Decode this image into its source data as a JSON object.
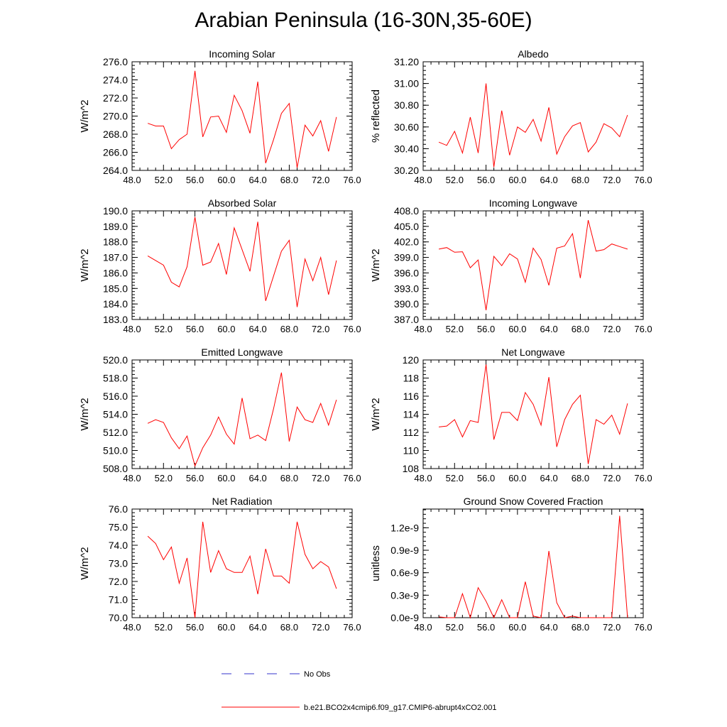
{
  "title": "Arabian Peninsula (16-30N,35-60E)",
  "colors": {
    "series": "#ff0000",
    "obs": "#3333cc",
    "axes": "#000000"
  },
  "legend": {
    "obs_label": "No Obs",
    "model_label": "b.e21.BCO2x4cmip6.f09_g17.CMIP6-abrupt4xCO2.001"
  },
  "chart_data": [
    {
      "type": "line",
      "title": "Incoming Solar",
      "ylabel": "W/m^2",
      "xlim": [
        48,
        76
      ],
      "ylim": [
        264,
        276
      ],
      "xticks": [
        "48.0",
        "52.0",
        "56.0",
        "60.0",
        "64.0",
        "68.0",
        "72.0",
        "76.0"
      ],
      "yticks": [
        "264.0",
        "266.0",
        "268.0",
        "270.0",
        "272.0",
        "274.0",
        "276.0"
      ],
      "x": [
        50,
        51,
        52,
        53,
        54,
        55,
        56,
        57,
        58,
        59,
        60,
        61,
        62,
        63,
        64,
        65,
        66,
        67,
        68,
        69,
        70,
        71,
        72,
        73,
        74
      ],
      "series": [
        {
          "name": "b.e21.BCO2x4cmip6.f09_g17.CMIP6-abrupt4xCO2.001",
          "values": [
            269.2,
            268.9,
            268.9,
            266.4,
            267.4,
            268.0,
            275.0,
            267.7,
            269.9,
            270.0,
            268.2,
            272.3,
            270.6,
            268.1,
            273.8,
            264.8,
            267.4,
            270.3,
            271.4,
            264.3,
            269.0,
            267.8,
            269.5,
            266.1,
            269.9
          ]
        }
      ]
    },
    {
      "type": "line",
      "title": "Albedo",
      "ylabel": "% reflected",
      "xlim": [
        48,
        76
      ],
      "ylim": [
        30.2,
        31.2
      ],
      "xticks": [
        "48.0",
        "52.0",
        "56.0",
        "60.0",
        "64.0",
        "68.0",
        "72.0",
        "76.0"
      ],
      "yticks": [
        "30.20",
        "30.40",
        "30.60",
        "30.80",
        "31.00",
        "31.20"
      ],
      "x": [
        50,
        51,
        52,
        53,
        54,
        55,
        56,
        57,
        58,
        59,
        60,
        61,
        62,
        63,
        64,
        65,
        66,
        67,
        68,
        69,
        70,
        71,
        72,
        73,
        74
      ],
      "series": [
        {
          "name": "b.e21.BCO2x4cmip6.f09_g17.CMIP6-abrupt4xCO2.001",
          "values": [
            30.46,
            30.43,
            30.56,
            30.36,
            30.69,
            30.36,
            31.0,
            30.23,
            30.75,
            30.34,
            30.6,
            30.55,
            30.67,
            30.47,
            30.78,
            30.35,
            30.51,
            30.61,
            30.64,
            30.37,
            30.46,
            30.63,
            30.59,
            30.51,
            30.71
          ]
        }
      ]
    },
    {
      "type": "line",
      "title": "Absorbed Solar",
      "ylabel": "W/m^2",
      "xlim": [
        48,
        76
      ],
      "ylim": [
        183,
        190
      ],
      "xticks": [
        "48.0",
        "52.0",
        "56.0",
        "60.0",
        "64.0",
        "68.0",
        "72.0",
        "76.0"
      ],
      "yticks": [
        "183.0",
        "184.0",
        "185.0",
        "186.0",
        "187.0",
        "188.0",
        "189.0",
        "190.0"
      ],
      "x": [
        50,
        51,
        52,
        53,
        54,
        55,
        56,
        57,
        58,
        59,
        60,
        61,
        62,
        63,
        64,
        65,
        66,
        67,
        68,
        69,
        70,
        71,
        72,
        73,
        74
      ],
      "series": [
        {
          "name": "b.e21.BCO2x4cmip6.f09_g17.CMIP6-abrupt4xCO2.001",
          "values": [
            187.1,
            186.8,
            186.5,
            185.4,
            185.1,
            186.4,
            189.6,
            186.5,
            186.7,
            187.9,
            185.9,
            188.9,
            187.5,
            186.1,
            189.3,
            184.2,
            185.8,
            187.4,
            188.1,
            183.8,
            186.9,
            185.5,
            187.0,
            184.6,
            186.8
          ]
        }
      ]
    },
    {
      "type": "line",
      "title": "Incoming Longwave",
      "ylabel": "W/m^2",
      "xlim": [
        48,
        76
      ],
      "ylim": [
        387,
        408
      ],
      "xticks": [
        "48.0",
        "52.0",
        "56.0",
        "60.0",
        "64.0",
        "68.0",
        "72.0",
        "76.0"
      ],
      "yticks": [
        "387.0",
        "390.0",
        "393.0",
        "396.0",
        "399.0",
        "402.0",
        "405.0",
        "408.0"
      ],
      "x": [
        50,
        51,
        52,
        53,
        54,
        55,
        56,
        57,
        58,
        59,
        60,
        61,
        62,
        63,
        64,
        65,
        66,
        67,
        68,
        69,
        70,
        71,
        72,
        73,
        74
      ],
      "series": [
        {
          "name": "b.e21.BCO2x4cmip6.f09_g17.CMIP6-abrupt4xCO2.001",
          "values": [
            400.6,
            400.9,
            400.0,
            400.1,
            397.0,
            398.5,
            388.8,
            399.2,
            397.4,
            399.7,
            398.7,
            394.2,
            400.8,
            398.6,
            393.6,
            400.8,
            401.2,
            403.6,
            395.0,
            406.2,
            400.2,
            400.5,
            401.6,
            401.1,
            400.6
          ]
        }
      ]
    },
    {
      "type": "line",
      "title": "Emitted Longwave",
      "ylabel": "W/m^2",
      "xlim": [
        48,
        76
      ],
      "ylim": [
        508,
        520
      ],
      "xticks": [
        "48.0",
        "52.0",
        "56.0",
        "60.0",
        "64.0",
        "68.0",
        "72.0",
        "76.0"
      ],
      "yticks": [
        "508.0",
        "510.0",
        "512.0",
        "514.0",
        "516.0",
        "518.0",
        "520.0"
      ],
      "x": [
        50,
        51,
        52,
        53,
        54,
        55,
        56,
        57,
        58,
        59,
        60,
        61,
        62,
        63,
        64,
        65,
        66,
        67,
        68,
        69,
        70,
        71,
        72,
        73,
        74
      ],
      "series": [
        {
          "name": "b.e21.BCO2x4cmip6.f09_g17.CMIP6-abrupt4xCO2.001",
          "values": [
            513.0,
            513.4,
            513.1,
            511.4,
            510.2,
            511.6,
            508.3,
            510.3,
            511.7,
            513.7,
            511.8,
            510.7,
            515.8,
            511.3,
            511.7,
            511.1,
            514.6,
            518.6,
            511.0,
            514.8,
            513.4,
            513.1,
            515.2,
            512.8,
            515.6
          ]
        }
      ]
    },
    {
      "type": "line",
      "title": "Net Longwave",
      "ylabel": "W/m^2",
      "xlim": [
        48,
        76
      ],
      "ylim": [
        108,
        120
      ],
      "xticks": [
        "48.0",
        "52.0",
        "56.0",
        "60.0",
        "64.0",
        "68.0",
        "72.0",
        "76.0"
      ],
      "yticks": [
        "108",
        "110",
        "112",
        "114",
        "116",
        "118",
        "120"
      ],
      "x": [
        50,
        51,
        52,
        53,
        54,
        55,
        56,
        57,
        58,
        59,
        60,
        61,
        62,
        63,
        64,
        65,
        66,
        67,
        68,
        69,
        70,
        71,
        72,
        73,
        74
      ],
      "series": [
        {
          "name": "b.e21.BCO2x4cmip6.f09_g17.CMIP6-abrupt4xCO2.001",
          "values": [
            112.6,
            112.7,
            113.4,
            111.5,
            113.3,
            113.1,
            119.5,
            111.2,
            114.2,
            114.2,
            113.3,
            116.4,
            115.1,
            112.8,
            118.1,
            110.4,
            113.4,
            115.1,
            116.1,
            108.5,
            113.4,
            112.9,
            113.9,
            111.8,
            115.2
          ]
        }
      ]
    },
    {
      "type": "line",
      "title": "Net Radiation",
      "ylabel": "W/m^2",
      "xlim": [
        48,
        76
      ],
      "ylim": [
        70,
        76
      ],
      "xticks": [
        "48.0",
        "52.0",
        "56.0",
        "60.0",
        "64.0",
        "68.0",
        "72.0",
        "76.0"
      ],
      "yticks": [
        "70.0",
        "71.0",
        "72.0",
        "73.0",
        "74.0",
        "75.0",
        "76.0"
      ],
      "x": [
        50,
        51,
        52,
        53,
        54,
        55,
        56,
        57,
        58,
        59,
        60,
        61,
        62,
        63,
        64,
        65,
        66,
        67,
        68,
        69,
        70,
        71,
        72,
        73,
        74
      ],
      "series": [
        {
          "name": "b.e21.BCO2x4cmip6.f09_g17.CMIP6-abrupt4xCO2.001",
          "values": [
            74.5,
            74.1,
            73.2,
            73.9,
            71.9,
            73.3,
            70.0,
            75.3,
            72.5,
            73.7,
            72.7,
            72.5,
            72.5,
            73.4,
            71.3,
            73.8,
            72.3,
            72.3,
            71.9,
            75.3,
            73.5,
            72.7,
            73.1,
            72.8,
            71.6
          ]
        }
      ]
    },
    {
      "type": "line",
      "title": "Ground Snow Covered Fraction",
      "ylabel": "unitless",
      "xlim": [
        48,
        76
      ],
      "ylim": [
        0,
        1.45
      ],
      "xticks": [
        "48.0",
        "52.0",
        "56.0",
        "60.0",
        "64.0",
        "68.0",
        "72.0",
        "76.0"
      ],
      "ytick_values": [
        0,
        0.3,
        0.6,
        0.9,
        1.2
      ],
      "yticks": [
        "0.0e-9",
        "0.3e-9",
        "0.6e-9",
        "0.9e-9",
        "1.2e-9"
      ],
      "x": [
        50,
        51,
        52,
        53,
        54,
        55,
        56,
        57,
        58,
        59,
        60,
        61,
        62,
        63,
        64,
        65,
        66,
        67,
        68,
        69,
        70,
        71,
        72,
        73,
        74
      ],
      "series": [
        {
          "name": "b.e21.BCO2x4cmip6.f09_g17.CMIP6-abrupt4xCO2.001",
          "values": [
            0.01,
            0.0,
            0.0,
            0.32,
            0.0,
            0.4,
            0.22,
            0.0,
            0.24,
            0.0,
            0.0,
            0.48,
            0.02,
            0.0,
            0.89,
            0.2,
            0.0,
            0.02,
            0.0,
            0.0,
            0.0,
            0.0,
            0.0,
            1.36,
            0.0
          ]
        }
      ]
    }
  ]
}
